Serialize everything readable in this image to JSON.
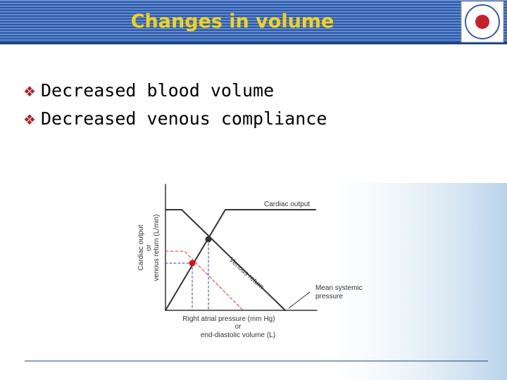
{
  "header": {
    "title": "Changes in volume"
  },
  "bullets": [
    "Decreased blood volume",
    "Decreased venous compliance"
  ],
  "figure": {
    "y_axis_label": [
      "Cardiac output",
      "or",
      "venous return (L/min)"
    ],
    "x_axis_label": [
      "Right atrial pressure (mm Hg)",
      "or",
      "end-diastolic volume (L)"
    ],
    "curve_labels": {
      "cardiac_output": "Cardiac output",
      "venous_return": "Venous return",
      "mean_systemic_pressure": [
        "Mean systemic",
        "pressure"
      ]
    }
  }
}
